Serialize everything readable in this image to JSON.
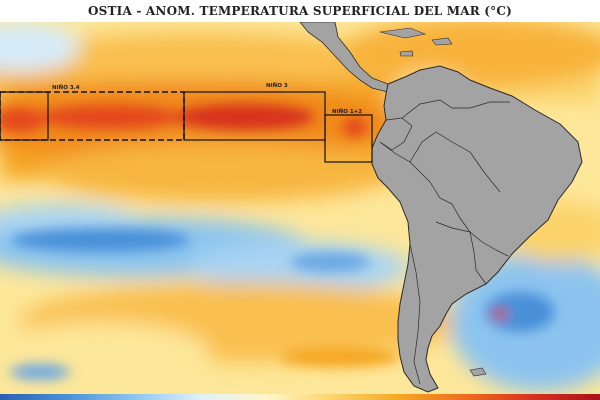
{
  "title": "OSTIA - ANOM. TEMPERATURA SUPERFICIAL DEL MAR (°C)",
  "regions": [
    {
      "label": "NIÑO 3.4"
    },
    {
      "label": "NIÑO 3"
    },
    {
      "label": "NIÑO 1+2"
    }
  ],
  "colors": {
    "land": "#a3a3a3",
    "country_border": "#2a2a2a",
    "warm_strong": "#d7301f",
    "warm": "#f5a623",
    "warm_light": "#fbd36a",
    "neutral": "#fff6c8",
    "cool": "#8cc4ef",
    "cool_strong": "#4a90d9"
  }
}
